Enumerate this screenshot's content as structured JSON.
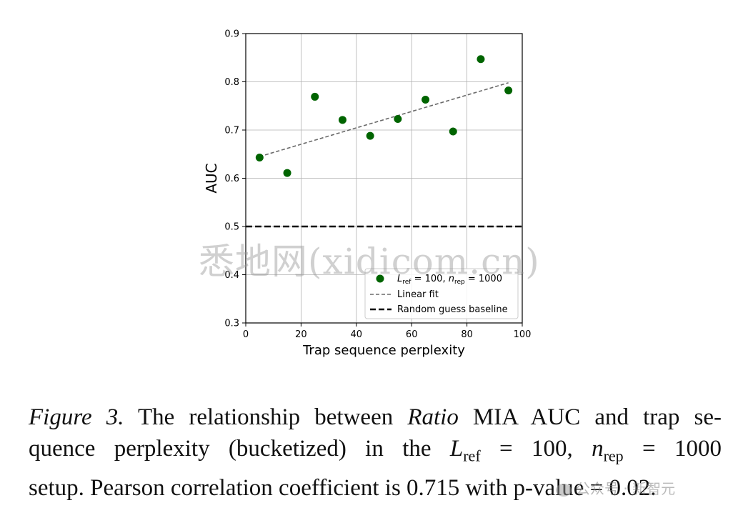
{
  "chart_data": {
    "type": "scatter",
    "xlabel": "Trap sequence perplexity",
    "ylabel": "AUC",
    "xlim": [
      0,
      100
    ],
    "ylim": [
      0.3,
      0.9
    ],
    "xticks": [
      "0",
      "20",
      "40",
      "60",
      "80",
      "100"
    ],
    "yticks": [
      "0.3",
      "0.4",
      "0.5",
      "0.6",
      "0.7",
      "0.8",
      "0.9"
    ],
    "grid": true,
    "legend_position": "lower-right",
    "series": [
      {
        "name_base": "L_ref = 100, n_rep = 1000",
        "color": "#006400",
        "x": [
          5,
          15,
          25,
          35,
          45,
          55,
          65,
          75,
          85,
          95
        ],
        "y": [
          0.643,
          0.611,
          0.769,
          0.721,
          0.688,
          0.723,
          0.763,
          0.697,
          0.847,
          0.782
        ]
      }
    ],
    "linear_fit": {
      "name": "Linear fit",
      "color": "#6a6a6a",
      "x": [
        5,
        95
      ],
      "y": [
        0.645,
        0.798
      ]
    },
    "baseline": {
      "name": "Random guess baseline",
      "value": 0.5,
      "color": "#000000"
    },
    "legend_items": {
      "scatter_L": "L",
      "scatter_ref": "ref",
      "scatter_mid": " = 100, ",
      "scatter_n": "n",
      "scatter_rep": "rep",
      "scatter_end": " = 1000",
      "fit": "Linear fit",
      "baseline": "Random guess baseline"
    }
  },
  "caption": {
    "fig": "Figure 3.",
    "t1": " The relationship between ",
    "ratio": "Ratio",
    "t2": " MIA AUC and trap se-",
    "t3": "quence perplexity (bucketized) in the ",
    "lref": "L",
    "lref_sub": "ref",
    "eq1": " = 100, ",
    "nrep": "n",
    "nrep_sub": "rep",
    "eq2": " = 1000",
    "t4": "setup. Pearson correlation coefficient is 0.715 with p-value = 0.02."
  },
  "watermark": "悉地网(xidicom.cn)",
  "wechat_mark": "公众号 · 新智元"
}
